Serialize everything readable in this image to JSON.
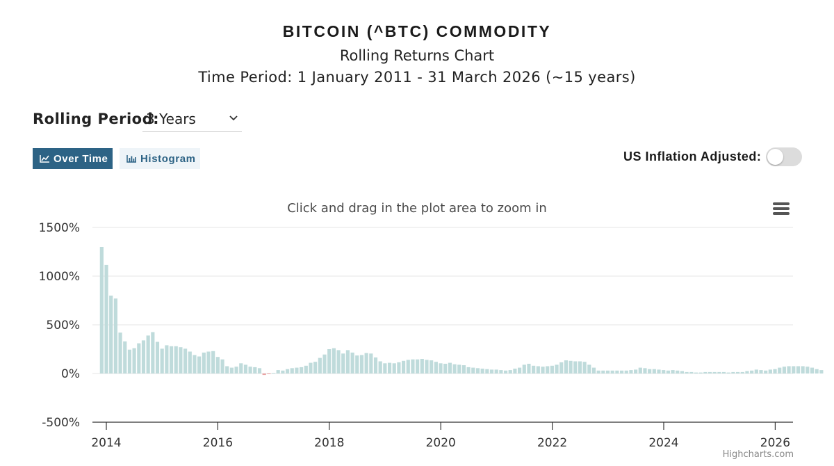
{
  "header": {
    "title": "BITCOIN (^BTC) COMMODITY",
    "subtitle": "Rolling Returns Chart",
    "period": "Time Period: 1 January 2011 - 31 March 2026 (~15 years)"
  },
  "controls": {
    "rolling_label": "Rolling Period:",
    "rolling_value": "3 Years",
    "btn_over_time": "Over Time",
    "btn_histogram": "Histogram",
    "inflation_label": "US Inflation Adjusted:",
    "inflation_on": false
  },
  "chart_meta": {
    "zoom_hint": "Click and drag in the plot area to zoom in",
    "credit": "Highcharts.com"
  },
  "colors": {
    "bar_positive": "#bfdbdb",
    "bar_negative": "#e9a3a3",
    "accent": "#2d6385"
  },
  "chart_data": {
    "type": "bar",
    "title": "",
    "xlabel": "",
    "ylabel": "",
    "ylim": [
      -500,
      1500
    ],
    "yticks": [
      "-500%",
      "0%",
      "500%",
      "1000%",
      "1500%"
    ],
    "ytick_values": [
      -500,
      0,
      500,
      1000,
      1500
    ],
    "xticks": [
      "2014",
      "2016",
      "2018",
      "2020",
      "2022",
      "2024",
      "2026"
    ],
    "xtick_values": [
      2014,
      2016,
      2018,
      2020,
      2022,
      2024,
      2026
    ],
    "grid": true,
    "legend": "none",
    "series": [
      {
        "x_start": 2013.917,
        "x_step": 0.0833,
        "values": [
          1300,
          1115,
          800,
          770,
          420,
          330,
          245,
          260,
          310,
          340,
          390,
          425,
          325,
          255,
          290,
          280,
          280,
          270,
          255,
          225,
          190,
          175,
          215,
          225,
          230,
          170,
          145,
          75,
          60,
          70,
          105,
          90,
          70,
          65,
          55,
          -15,
          -5,
          5,
          35,
          30,
          45,
          55,
          60,
          65,
          80,
          110,
          120,
          160,
          195,
          250,
          260,
          240,
          205,
          240,
          215,
          185,
          190,
          210,
          205,
          165,
          125,
          105,
          110,
          105,
          115,
          130,
          140,
          145,
          145,
          150,
          140,
          135,
          120,
          105,
          100,
          110,
          95,
          90,
          85,
          65,
          60,
          55,
          50,
          45,
          40,
          40,
          35,
          30,
          35,
          50,
          60,
          90,
          100,
          80,
          75,
          70,
          75,
          80,
          90,
          115,
          135,
          130,
          125,
          125,
          120,
          90,
          60,
          30,
          30,
          30,
          30,
          30,
          30,
          30,
          35,
          40,
          60,
          55,
          45,
          45,
          40,
          35,
          30,
          35,
          30,
          25,
          15,
          15,
          10,
          10,
          15,
          15,
          15,
          15,
          15,
          10,
          15,
          15,
          15,
          25,
          30,
          40,
          35,
          30,
          40,
          45,
          60,
          70,
          75,
          75,
          75,
          75,
          70,
          60,
          45,
          35
        ]
      }
    ]
  }
}
